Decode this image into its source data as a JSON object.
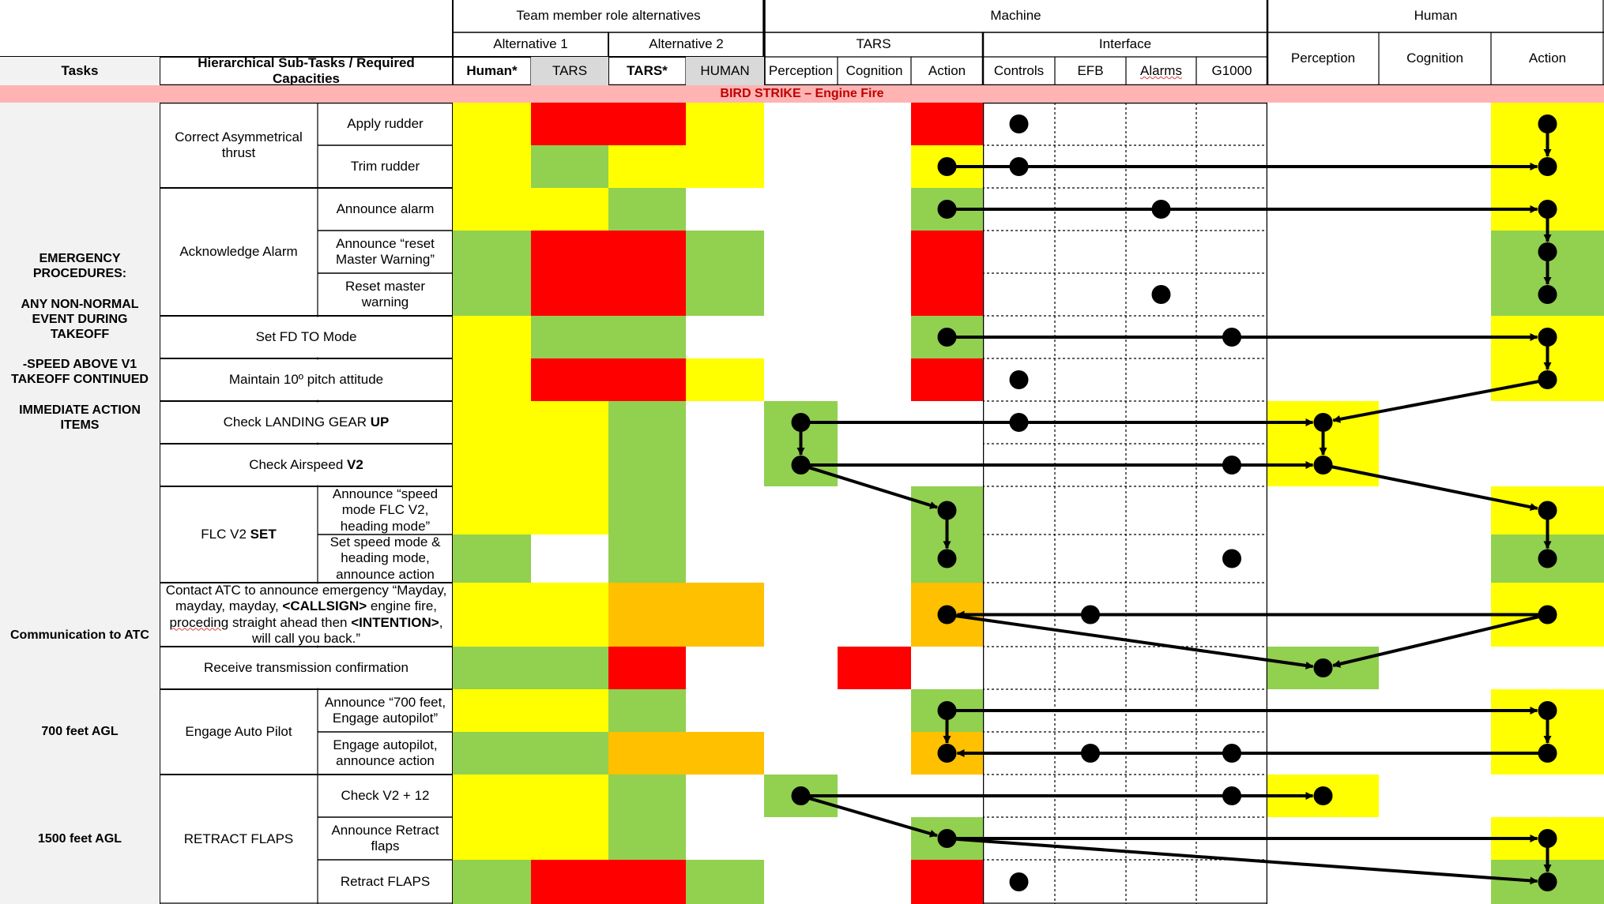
{
  "banner": "BIRD STRIKE – Engine Fire",
  "headers": {
    "team_roles": "Team member role alternatives",
    "machine": "Machine",
    "human": "Human",
    "alt1": "Alternative 1",
    "alt2": "Alternative 2",
    "tars_group": "TARS",
    "interface_group": "Interface",
    "tasks": "Tasks",
    "subtasks": "Hierarchical Sub-Tasks / Required Capacities",
    "alt1_human": "Human*",
    "alt1_tars": "TARS",
    "alt2_tars": "TARS*",
    "alt2_human": "HUMAN",
    "m_perception": "Perception",
    "m_cognition": "Cognition",
    "m_action": "Action",
    "i_controls": "Controls",
    "i_efb": "EFB",
    "i_alarms": "Alarms",
    "i_g1000": "G1000",
    "h_perception": "Perception",
    "h_cognition": "Cognition",
    "h_action": "Action"
  },
  "colors": {
    "yellow": "#ffff00",
    "red": "#ff0000",
    "green": "#92d050",
    "orange": "#ffc000",
    "white": "#ffffff",
    "banner_bg": "#ffb3b3",
    "banner_text": "#c00000"
  },
  "task_groups": [
    {
      "lines": [
        "EMERGENCY",
        "PROCEDURES:",
        "",
        "ANY NON-NORMAL",
        "EVENT DURING TAKEOFF",
        "",
        "-SPEED ABOVE V1",
        "TAKEOFF CONTINUED",
        "",
        "IMMEDIATE ACTION",
        "ITEMS"
      ]
    },
    {
      "lines": [
        "Communication to ATC"
      ]
    },
    {
      "lines": [
        "700 feet AGL"
      ]
    },
    {
      "lines": [
        "1500 feet AGL"
      ]
    }
  ],
  "subtasks": [
    {
      "segments": [
        {
          "t": "Correct Asymmetrical thrust"
        }
      ]
    },
    {
      "segments": [
        {
          "t": "Acknowledge Alarm"
        }
      ]
    },
    {
      "segments": [
        {
          "t": "Set FD TO Mode"
        }
      ]
    },
    {
      "segments": [
        {
          "t": "Maintain 10º pitch attitude"
        }
      ]
    },
    {
      "segments": [
        {
          "t": "Check LANDING GEAR "
        },
        {
          "t": "UP",
          "b": true
        }
      ]
    },
    {
      "segments": [
        {
          "t": "Check Airspeed "
        },
        {
          "t": "V2",
          "b": true
        }
      ]
    },
    {
      "segments": [
        {
          "t": "FLC V2 "
        },
        {
          "t": "SET",
          "b": true
        }
      ]
    },
    {
      "segments": [
        {
          "t": "Contact ATC to announce emergency “Mayday, mayday, mayday, "
        },
        {
          "t": "<CALLSIGN>",
          "b": true
        },
        {
          "t": " engine fire, "
        },
        {
          "t": "proceding",
          "u": true
        },
        {
          "t": " straight ahead then "
        },
        {
          "t": "<INTENTION>",
          "b": true
        },
        {
          "t": ", will call you back.”"
        }
      ]
    },
    {
      "segments": [
        {
          "t": "Receive transmission confirmation"
        }
      ]
    },
    {
      "segments": [
        {
          "t": "Engage Auto Pilot"
        }
      ]
    },
    {
      "segments": [
        {
          "t": "RETRACT FLAPS"
        }
      ]
    }
  ],
  "rows": [
    {
      "label": "Apply rudder",
      "alt": [
        "yellow",
        "red",
        "red",
        "yellow"
      ],
      "m": [
        "white",
        "white",
        "red"
      ],
      "h": [
        "white",
        "white",
        "yellow"
      ]
    },
    {
      "label": "Trim rudder",
      "alt": [
        "yellow",
        "green",
        "yellow",
        "yellow"
      ],
      "m": [
        "white",
        "white",
        "yellow"
      ],
      "h": [
        "white",
        "white",
        "yellow"
      ]
    },
    {
      "label": "Announce alarm",
      "alt": [
        "yellow",
        "yellow",
        "green",
        "white"
      ],
      "m": [
        "white",
        "white",
        "green"
      ],
      "h": [
        "white",
        "white",
        "yellow"
      ]
    },
    {
      "label": "Announce “reset Master Warning”",
      "alt": [
        "green",
        "red",
        "red",
        "green"
      ],
      "m": [
        "white",
        "white",
        "red"
      ],
      "h": [
        "white",
        "white",
        "green"
      ]
    },
    {
      "label": "Reset master warning",
      "alt": [
        "green",
        "red",
        "red",
        "green"
      ],
      "m": [
        "white",
        "white",
        "red"
      ],
      "h": [
        "white",
        "white",
        "green"
      ]
    },
    {
      "label": "",
      "alt": [
        "yellow",
        "green",
        "green",
        "white"
      ],
      "m": [
        "white",
        "white",
        "green"
      ],
      "h": [
        "white",
        "white",
        "yellow"
      ]
    },
    {
      "label": "",
      "alt": [
        "yellow",
        "red",
        "red",
        "yellow"
      ],
      "m": [
        "white",
        "white",
        "red"
      ],
      "h": [
        "white",
        "white",
        "yellow"
      ]
    },
    {
      "label": "",
      "alt": [
        "yellow",
        "yellow",
        "green",
        "white"
      ],
      "m": [
        "green",
        "white",
        "white"
      ],
      "h": [
        "yellow",
        "white",
        "white"
      ]
    },
    {
      "label": "",
      "alt": [
        "yellow",
        "yellow",
        "green",
        "white"
      ],
      "m": [
        "green",
        "white",
        "white"
      ],
      "h": [
        "yellow",
        "white",
        "white"
      ]
    },
    {
      "label": "Announce “speed mode FLC V2, heading mode”",
      "alt": [
        "yellow",
        "yellow",
        "green",
        "white"
      ],
      "m": [
        "white",
        "white",
        "green"
      ],
      "h": [
        "white",
        "white",
        "yellow"
      ]
    },
    {
      "label": "Set speed mode & heading mode, announce action",
      "alt": [
        "green",
        "white",
        "green",
        "white"
      ],
      "m": [
        "white",
        "white",
        "green"
      ],
      "h": [
        "white",
        "white",
        "green"
      ]
    },
    {
      "label": "",
      "alt": [
        "yellow",
        "yellow",
        "orange",
        "orange"
      ],
      "m": [
        "white",
        "white",
        "orange"
      ],
      "h": [
        "white",
        "white",
        "yellow"
      ]
    },
    {
      "label": "",
      "alt": [
        "green",
        "green",
        "red",
        "white"
      ],
      "m": [
        "white",
        "red",
        "white"
      ],
      "h": [
        "green",
        "white",
        "white"
      ]
    },
    {
      "label": "Announce “700 feet, Engage autopilot”",
      "alt": [
        "yellow",
        "yellow",
        "green",
        "white"
      ],
      "m": [
        "white",
        "white",
        "green"
      ],
      "h": [
        "white",
        "white",
        "yellow"
      ]
    },
    {
      "label": "Engage autopilot, announce action",
      "alt": [
        "green",
        "green",
        "orange",
        "orange"
      ],
      "m": [
        "white",
        "white",
        "orange"
      ],
      "h": [
        "white",
        "white",
        "yellow"
      ]
    },
    {
      "label": "Check V2 + 12",
      "alt": [
        "yellow",
        "yellow",
        "green",
        "white"
      ],
      "m": [
        "green",
        "white",
        "white"
      ],
      "h": [
        "yellow",
        "white",
        "white"
      ]
    },
    {
      "label": "Announce Retract flaps",
      "alt": [
        "yellow",
        "yellow",
        "green",
        "white"
      ],
      "m": [
        "white",
        "white",
        "green"
      ],
      "h": [
        "white",
        "white",
        "yellow"
      ]
    },
    {
      "label": "Retract FLAPS",
      "alt": [
        "green",
        "red",
        "red",
        "green"
      ],
      "m": [
        "white",
        "white",
        "red"
      ],
      "h": [
        "white",
        "white",
        "green"
      ]
    }
  ],
  "dots": [
    {
      "row": 0,
      "col": "i_controls"
    },
    {
      "row": 0,
      "col": "h_action"
    },
    {
      "row": 1,
      "col": "m_action"
    },
    {
      "row": 1,
      "col": "i_controls"
    },
    {
      "row": 1,
      "col": "h_action"
    },
    {
      "row": 2,
      "col": "m_action"
    },
    {
      "row": 2,
      "col": "i_alarms"
    },
    {
      "row": 2,
      "col": "h_action"
    },
    {
      "row": 3,
      "col": "h_action"
    },
    {
      "row": 4,
      "col": "i_alarms"
    },
    {
      "row": 4,
      "col": "h_action"
    },
    {
      "row": 5,
      "col": "m_action"
    },
    {
      "row": 5,
      "col": "i_g1000"
    },
    {
      "row": 5,
      "col": "h_action"
    },
    {
      "row": 6,
      "col": "i_controls"
    },
    {
      "row": 6,
      "col": "h_action"
    },
    {
      "row": 7,
      "col": "m_perception"
    },
    {
      "row": 7,
      "col": "i_controls"
    },
    {
      "row": 7,
      "col": "h_perception"
    },
    {
      "row": 8,
      "col": "m_perception"
    },
    {
      "row": 8,
      "col": "i_g1000"
    },
    {
      "row": 8,
      "col": "h_perception"
    },
    {
      "row": 9,
      "col": "m_action"
    },
    {
      "row": 9,
      "col": "h_action"
    },
    {
      "row": 10,
      "col": "m_action"
    },
    {
      "row": 10,
      "col": "i_g1000"
    },
    {
      "row": 10,
      "col": "h_action"
    },
    {
      "row": 11,
      "col": "m_action"
    },
    {
      "row": 11,
      "col": "i_efb"
    },
    {
      "row": 11,
      "col": "h_action"
    },
    {
      "row": 12,
      "col": "h_perception"
    },
    {
      "row": 13,
      "col": "m_action"
    },
    {
      "row": 13,
      "col": "h_action"
    },
    {
      "row": 14,
      "col": "m_action"
    },
    {
      "row": 14,
      "col": "i_efb"
    },
    {
      "row": 14,
      "col": "i_g1000"
    },
    {
      "row": 14,
      "col": "h_action"
    },
    {
      "row": 15,
      "col": "m_perception"
    },
    {
      "row": 15,
      "col": "i_g1000"
    },
    {
      "row": 15,
      "col": "h_perception"
    },
    {
      "row": 16,
      "col": "m_action"
    },
    {
      "row": 16,
      "col": "h_action"
    },
    {
      "row": 17,
      "col": "i_controls"
    },
    {
      "row": 17,
      "col": "h_action"
    }
  ],
  "arrows": [
    {
      "from": [
        0,
        "h_action"
      ],
      "to": [
        1,
        "h_action"
      ]
    },
    {
      "from": [
        1,
        "m_action"
      ],
      "to": [
        1,
        "h_action"
      ]
    },
    {
      "from": [
        2,
        "m_action"
      ],
      "to": [
        2,
        "h_action"
      ]
    },
    {
      "from": [
        2,
        "h_action"
      ],
      "to": [
        3,
        "h_action"
      ]
    },
    {
      "from": [
        3,
        "h_action"
      ],
      "to": [
        4,
        "h_action"
      ]
    },
    {
      "from": [
        5,
        "m_action"
      ],
      "to": [
        5,
        "h_action"
      ]
    },
    {
      "from": [
        5,
        "h_action"
      ],
      "to": [
        6,
        "h_action"
      ]
    },
    {
      "from": [
        6,
        "h_action"
      ],
      "to": [
        7,
        "h_perception"
      ]
    },
    {
      "from": [
        7,
        "m_perception"
      ],
      "to": [
        7,
        "h_perception"
      ]
    },
    {
      "from": [
        7,
        "m_perception"
      ],
      "to": [
        8,
        "m_perception"
      ]
    },
    {
      "from": [
        7,
        "h_perception"
      ],
      "to": [
        8,
        "h_perception"
      ]
    },
    {
      "from": [
        8,
        "m_perception"
      ],
      "to": [
        8,
        "h_perception"
      ]
    },
    {
      "from": [
        8,
        "m_perception"
      ],
      "to": [
        9,
        "m_action"
      ]
    },
    {
      "from": [
        8,
        "h_perception"
      ],
      "to": [
        9,
        "h_action"
      ]
    },
    {
      "from": [
        9,
        "m_action"
      ],
      "to": [
        10,
        "m_action"
      ]
    },
    {
      "from": [
        9,
        "h_action"
      ],
      "to": [
        10,
        "h_action"
      ]
    },
    {
      "from": [
        11,
        "h_action"
      ],
      "to": [
        11,
        "m_action"
      ]
    },
    {
      "from": [
        11,
        "m_action"
      ],
      "to": [
        12,
        "h_perception"
      ]
    },
    {
      "from": [
        11,
        "h_action"
      ],
      "to": [
        12,
        "h_perception"
      ]
    },
    {
      "from": [
        13,
        "m_action"
      ],
      "to": [
        13,
        "h_action"
      ]
    },
    {
      "from": [
        13,
        "m_action"
      ],
      "to": [
        14,
        "m_action"
      ]
    },
    {
      "from": [
        13,
        "h_action"
      ],
      "to": [
        14,
        "h_action"
      ]
    },
    {
      "from": [
        14,
        "h_action"
      ],
      "to": [
        14,
        "m_action"
      ]
    },
    {
      "from": [
        15,
        "m_perception"
      ],
      "to": [
        15,
        "h_perception"
      ]
    },
    {
      "from": [
        15,
        "m_perception"
      ],
      "to": [
        16,
        "m_action"
      ]
    },
    {
      "from": [
        16,
        "m_action"
      ],
      "to": [
        16,
        "h_action"
      ]
    },
    {
      "from": [
        16,
        "h_action"
      ],
      "to": [
        17,
        "h_action"
      ]
    },
    {
      "from": [
        16,
        "m_action"
      ],
      "to": [
        17,
        "h_action"
      ]
    }
  ]
}
